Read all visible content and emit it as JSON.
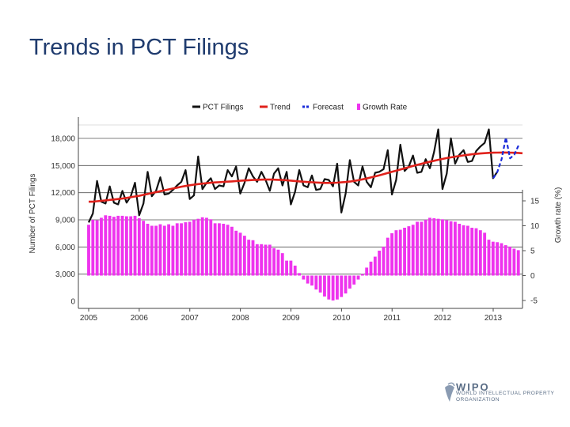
{
  "slide": {
    "title": "Trends in PCT Filings"
  },
  "branding": {
    "logo_icon": "wipo-logo-icon",
    "name": "WIPO",
    "subtitle": "WORLD INTELLECTUAL PROPERTY ORGANIZATION"
  },
  "chart_data": {
    "type": "line",
    "title": "",
    "xlabel": "",
    "ylabel": "Number of PCT Filings",
    "y2label": "Growth rate (%)",
    "ylim": [
      0,
      18000
    ],
    "y2lim": [
      -5,
      15
    ],
    "xlim": [
      2005,
      2013.5
    ],
    "x_ticks": [
      "2005",
      "2006",
      "2007",
      "2008",
      "2009",
      "2010",
      "2011",
      "2012",
      "2013"
    ],
    "y_ticks": [
      "0",
      "3,000",
      "6,000",
      "9,000",
      "12,000",
      "15,000",
      "18,000"
    ],
    "y2_ticks": [
      "-5",
      "0",
      "5",
      "10",
      "15"
    ],
    "grid": true,
    "legend_position": "top",
    "colors": {
      "pct_filings": "#111111",
      "trend": "#e0211b",
      "forecast": "#1a2bd9",
      "growth_rate": "#ee33ee"
    },
    "series": [
      {
        "name": "PCT Filings",
        "kind": "line",
        "axis": "left",
        "start": 2005.0,
        "step": 0.0833,
        "values": [
          8700,
          9700,
          13300,
          11000,
          10800,
          12700,
          10900,
          10700,
          12200,
          10900,
          11600,
          13100,
          9500,
          10800,
          14300,
          11600,
          12200,
          13700,
          11800,
          11900,
          12300,
          12800,
          13200,
          14500,
          11300,
          11700,
          16000,
          12400,
          13100,
          13600,
          12400,
          12800,
          12700,
          14500,
          13800,
          14900,
          11900,
          13100,
          14700,
          13800,
          13200,
          14300,
          13400,
          12200,
          14100,
          14700,
          12800,
          14300,
          10700,
          12100,
          14500,
          12800,
          12600,
          13900,
          12300,
          12400,
          13500,
          13400,
          12700,
          15200,
          9800,
          11900,
          15600,
          13200,
          12800,
          14900,
          13200,
          12600,
          14200,
          14300,
          14600,
          16700,
          11800,
          13400,
          17300,
          14400,
          14900,
          16100,
          14200,
          14300,
          15700,
          14700,
          16500,
          19000,
          12400,
          14100,
          18000,
          15200,
          16200,
          16700,
          15400,
          15500,
          16600,
          17100,
          17500,
          19000,
          13600,
          14300
        ]
      },
      {
        "name": "Trend",
        "kind": "line",
        "axis": "left",
        "start": 2005.0,
        "step": 0.0833,
        "values": [
          11000,
          11000,
          11050,
          11100,
          11150,
          11200,
          11250,
          11300,
          11350,
          11420,
          11500,
          11580,
          11660,
          11760,
          11860,
          11960,
          12060,
          12160,
          12260,
          12360,
          12460,
          12560,
          12660,
          12740,
          12820,
          12890,
          12950,
          13000,
          13050,
          13100,
          13130,
          13160,
          13190,
          13220,
          13250,
          13280,
          13320,
          13350,
          13380,
          13400,
          13420,
          13440,
          13450,
          13450,
          13440,
          13420,
          13400,
          13370,
          13330,
          13290,
          13250,
          13210,
          13180,
          13150,
          13120,
          13100,
          13080,
          13080,
          13090,
          13110,
          13140,
          13180,
          13230,
          13300,
          13380,
          13470,
          13570,
          13680,
          13800,
          13920,
          14040,
          14170,
          14300,
          14430,
          14560,
          14690,
          14820,
          14950,
          15070,
          15190,
          15310,
          15420,
          15530,
          15630,
          15730,
          15820,
          15900,
          15980,
          16050,
          16120,
          16180,
          16240,
          16290,
          16330,
          16370,
          16400,
          16420,
          16430,
          16440,
          16440,
          16430,
          16410,
          16390,
          16360
        ]
      },
      {
        "name": "Forecast",
        "kind": "line",
        "axis": "left",
        "start": 2013.0,
        "step": 0.0833,
        "values": [
          13600,
          14300,
          15700,
          18100,
          15800,
          16200,
          17200
        ]
      },
      {
        "name": "Growth Rate",
        "kind": "bar",
        "axis": "right",
        "start": 2005.0,
        "step": 0.0833,
        "values": [
          10.2,
          11.2,
          11.1,
          11.6,
          12.1,
          12.0,
          11.8,
          12.0,
          12.0,
          11.9,
          11.9,
          12.0,
          11.5,
          11.0,
          10.4,
          10.0,
          10.0,
          10.3,
          10.0,
          10.3,
          10.0,
          10.5,
          10.5,
          10.7,
          10.8,
          11.2,
          11.4,
          11.7,
          11.6,
          11.3,
          10.5,
          10.5,
          10.4,
          10.2,
          9.8,
          9.0,
          8.6,
          8.0,
          7.2,
          7.1,
          6.3,
          6.3,
          6.2,
          6.2,
          5.5,
          5.2,
          4.5,
          3.0,
          3.0,
          2.0,
          0.5,
          -0.8,
          -1.6,
          -2.0,
          -2.8,
          -3.4,
          -4.2,
          -4.8,
          -5.0,
          -4.8,
          -4.3,
          -3.6,
          -2.6,
          -1.8,
          -0.8,
          0.3,
          1.6,
          2.8,
          3.8,
          5.0,
          5.8,
          7.6,
          8.5,
          9.1,
          9.2,
          9.6,
          9.9,
          10.2,
          10.8,
          10.8,
          11.2,
          11.6,
          11.5,
          11.4,
          11.3,
          11.1,
          10.9,
          10.8,
          10.4,
          10.1,
          10.0,
          9.6,
          9.5,
          9.1,
          8.6,
          7.2,
          6.8,
          6.7,
          6.5,
          6.1,
          5.8,
          5.4,
          5.1
        ]
      }
    ]
  }
}
